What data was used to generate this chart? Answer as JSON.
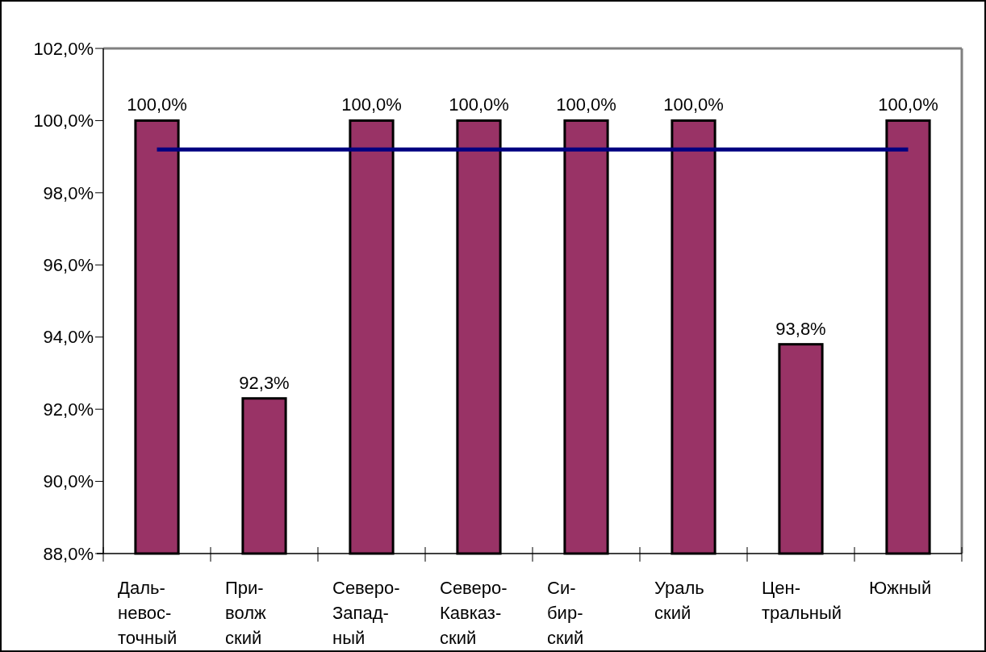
{
  "chart_data": {
    "type": "bar",
    "categories": [
      "Даль-\nневос-\nточный",
      "При-\nволж\nский",
      "Северо-\nЗапад-\nный",
      "Северо-\nКавказ-\nский",
      "Си-\nбир-\nский",
      "Ураль\nский",
      "Цен-\nтральный",
      "Южный"
    ],
    "series": [
      {
        "color": "#993366",
        "values": [
          100,
          92.3,
          100,
          100,
          100,
          100,
          93.8,
          100
        ],
        "value_labels": [
          "100,0%",
          "92,3%",
          "100,0%",
          "100,0%",
          "100,0%",
          "100,0%",
          "93,8%",
          "100,0%"
        ]
      },
      {
        "type": "line",
        "color": "#000080",
        "values": [
          99.2,
          99.2,
          99.2,
          99.2,
          99.2,
          99.2,
          99.2,
          99.2
        ]
      }
    ],
    "ylim": [
      88,
      102
    ],
    "yticks": [
      {
        "value": 88,
        "label": "88,0%"
      },
      {
        "value": 90,
        "label": "90,0%"
      },
      {
        "value": 92,
        "label": "92,0%"
      },
      {
        "value": 94,
        "label": "94,0%"
      },
      {
        "value": 96,
        "label": "96,0%"
      },
      {
        "value": 98,
        "label": "98,0%"
      },
      {
        "value": 100,
        "label": "100,0%"
      },
      {
        "value": 102,
        "label": "102,0%"
      }
    ],
    "grid": false,
    "marker": "none",
    "line_style": "solid"
  }
}
